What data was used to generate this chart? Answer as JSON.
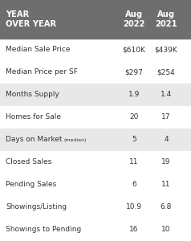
{
  "header_bg": "#6e6e6e",
  "header_text_color": "#ffffff",
  "header_col1": "YEAR\nOVER YEAR",
  "header_col2": "Aug\n2022",
  "header_col3": "Aug\n2021",
  "rows": [
    {
      "label": "Median Sale Price",
      "label_small": null,
      "val1": "$610K",
      "val2": "$439K"
    },
    {
      "label": "Median Price per SF",
      "label_small": null,
      "val1": "$297",
      "val2": "$254"
    },
    {
      "label": "Months Supply",
      "label_small": null,
      "val1": "1.9",
      "val2": "1.4"
    },
    {
      "label": "Homes for Sale",
      "label_small": null,
      "val1": "20",
      "val2": "17"
    },
    {
      "label": "Days on Market",
      "label_small": "(median)",
      "val1": "5",
      "val2": "4"
    },
    {
      "label": "Closed Sales",
      "label_small": null,
      "val1": "11",
      "val2": "19"
    },
    {
      "label": "Pending Sales",
      "label_small": null,
      "val1": "6",
      "val2": "11"
    },
    {
      "label": "Showings/Listing",
      "label_small": null,
      "val1": "10.9",
      "val2": "6.8"
    },
    {
      "label": "Showings to Pending",
      "label_small": null,
      "val1": "16",
      "val2": "10"
    }
  ],
  "row_colors": [
    "#ffffff",
    "#ffffff",
    "#e8e8e8",
    "#ffffff",
    "#e8e8e8",
    "#ffffff",
    "#ffffff",
    "#ffffff",
    "#ffffff"
  ],
  "text_color": "#333333",
  "fig_width": 2.38,
  "fig_height": 3.0,
  "dpi": 100
}
